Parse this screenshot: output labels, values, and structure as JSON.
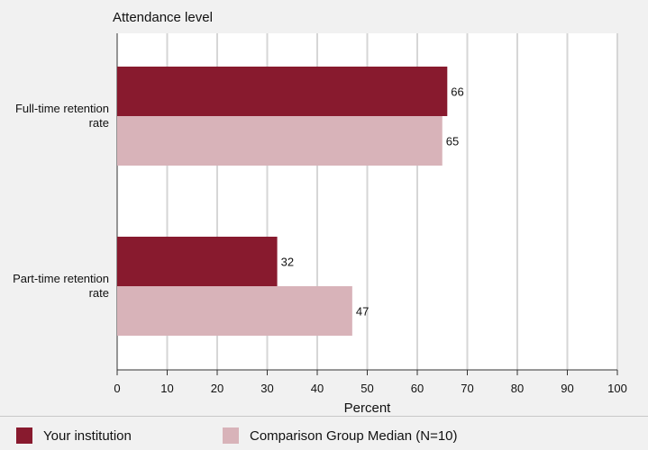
{
  "chart_data": {
    "type": "bar",
    "orientation": "horizontal",
    "title": "Attendance level",
    "categories": [
      "Full-time retention rate",
      "Part-time retention rate"
    ],
    "category_lines": [
      [
        "Full-time retention",
        "rate"
      ],
      [
        "Part-time retention",
        "rate"
      ]
    ],
    "series": [
      {
        "name": "Your institution",
        "values": [
          66,
          32
        ],
        "color": "#881a2e"
      },
      {
        "name": "Comparison Group Median (N=10)",
        "values": [
          65,
          47
        ],
        "color": "#d8b3b9"
      }
    ],
    "xlabel": "Percent",
    "xlim": [
      0,
      100
    ],
    "xticks": [
      0,
      10,
      20,
      30,
      40,
      50,
      60,
      70,
      80,
      90,
      100
    ],
    "grid": true,
    "legend_position": "bottom"
  }
}
